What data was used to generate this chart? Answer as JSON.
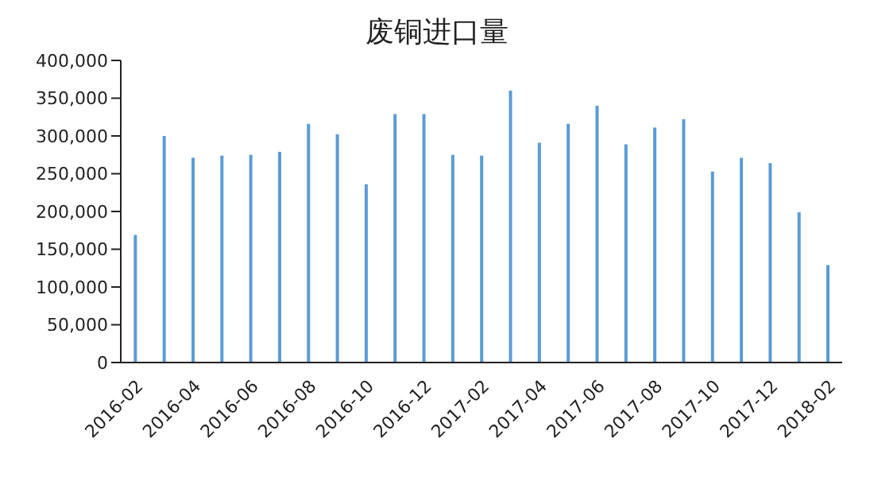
{
  "chart_data": {
    "type": "bar",
    "title": "废铜进口量",
    "categories": [
      "2016-02",
      null,
      "2016-04",
      null,
      "2016-06",
      null,
      "2016-08",
      null,
      "2016-10",
      null,
      "2016-12",
      null,
      "2017-02",
      null,
      "2017-04",
      null,
      "2017-06",
      null,
      "2017-08",
      null,
      "2017-10",
      null,
      "2017-12",
      null,
      "2018-02"
    ],
    "values": [
      169000,
      300000,
      271000,
      274000,
      275000,
      279000,
      316000,
      302000,
      236000,
      329000,
      329000,
      275000,
      274000,
      360000,
      291000,
      316000,
      340000,
      289000,
      311000,
      322000,
      253000,
      271000,
      264000,
      199000,
      129000
    ],
    "color": "#5b9bd5",
    "ylim": [
      0,
      400000
    ],
    "yticks": [
      0,
      {
        "value": 50000,
        "label": "50,000"
      },
      {
        "value": 100000,
        "label": "100,000"
      },
      {
        "value": 150000,
        "label": "150,000"
      },
      {
        "value": 200000,
        "label": "200,000"
      },
      {
        "value": 250000,
        "label": "250,000"
      },
      {
        "value": 300000,
        "label": "300,000"
      },
      {
        "value": 350000,
        "label": "350,000"
      },
      {
        "value": 400000,
        "label": "400,000"
      }
    ],
    "grid": false,
    "legend": false
  }
}
